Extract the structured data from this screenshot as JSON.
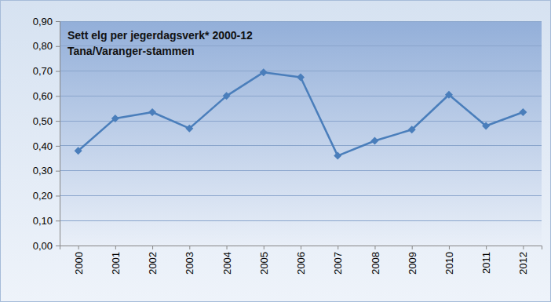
{
  "chart_data": {
    "type": "line",
    "title": "Sett elg per jegerdagsverk* 2000-12",
    "subtitle": "Tana/Varanger-stammen",
    "categories": [
      "2000",
      "2001",
      "2002",
      "2003",
      "2004",
      "2005",
      "2006",
      "2007",
      "2008",
      "2009",
      "2010",
      "2011",
      "2012"
    ],
    "values": [
      0.38,
      0.51,
      0.535,
      0.47,
      0.6,
      0.695,
      0.675,
      0.36,
      0.42,
      0.465,
      0.605,
      0.48,
      0.535
    ],
    "color": "#4a7ebb",
    "marker": "diamond",
    "ylim": [
      0,
      0.9
    ],
    "yticks": [
      {
        "value": 0,
        "label": "0,00"
      },
      {
        "value": 0.1,
        "label": "0,10"
      },
      {
        "value": 0.2,
        "label": "0,20"
      },
      {
        "value": 0.3,
        "label": "0,30"
      },
      {
        "value": 0.4,
        "label": "0,40"
      },
      {
        "value": 0.5,
        "label": "0,50"
      },
      {
        "value": 0.6,
        "label": "0,60"
      },
      {
        "value": 0.7,
        "label": "0,70"
      },
      {
        "value": 0.8,
        "label": "0,80"
      },
      {
        "value": 0.9,
        "label": "0,90"
      }
    ],
    "grid": true
  }
}
